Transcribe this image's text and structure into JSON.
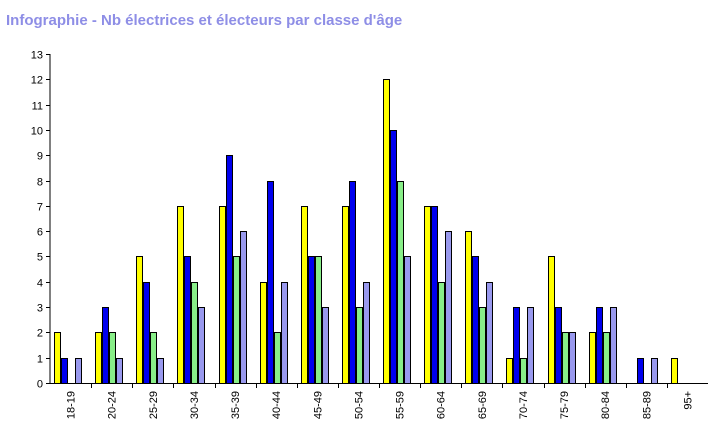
{
  "chart_data": {
    "type": "bar",
    "title": "Infographie - Nb électrices et électeurs par classe d'âge",
    "categories": [
      "18-19",
      "20-24",
      "25-29",
      "30-34",
      "35-39",
      "40-44",
      "45-49",
      "50-54",
      "55-59",
      "60-64",
      "65-69",
      "70-74",
      "75-79",
      "80-84",
      "85-89",
      "95+"
    ],
    "series": [
      {
        "color": "#ffff00",
        "values": [
          2,
          2,
          5,
          7,
          7,
          4,
          7,
          7,
          12,
          7,
          6,
          1,
          5,
          2,
          0,
          1
        ]
      },
      {
        "color": "#0000ee",
        "values": [
          1,
          3,
          4,
          5,
          9,
          8,
          5,
          8,
          10,
          7,
          5,
          3,
          3,
          3,
          1,
          0
        ]
      },
      {
        "color": "#88ee88",
        "values": [
          0,
          2,
          2,
          4,
          5,
          2,
          5,
          3,
          8,
          4,
          3,
          1,
          2,
          2,
          0,
          0
        ]
      },
      {
        "color": "#9999ee",
        "values": [
          1,
          1,
          1,
          3,
          6,
          4,
          3,
          4,
          5,
          6,
          4,
          3,
          2,
          3,
          1,
          0
        ]
      }
    ],
    "ylim": [
      0,
      13
    ],
    "yticks": [
      "0",
      "1",
      "2",
      "3",
      "4",
      "5",
      "6",
      "7",
      "8",
      "9",
      "10",
      "11",
      "12",
      "13"
    ],
    "grid": false,
    "legend": "none"
  }
}
